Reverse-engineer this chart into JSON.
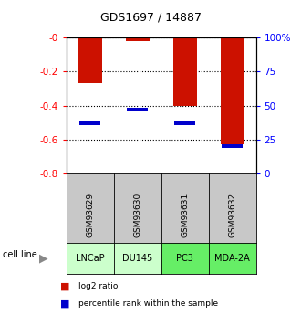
{
  "title": "GDS1697 / 14887",
  "samples": [
    "GSM93629",
    "GSM93630",
    "GSM93631",
    "GSM93632"
  ],
  "cell_lines": [
    "LNCaP",
    "DU145",
    "PC3",
    "MDA-2A"
  ],
  "log2_ratios": [
    -0.27,
    -0.02,
    -0.4,
    -0.63
  ],
  "percentile_ranks": [
    37,
    47,
    37,
    20
  ],
  "cell_line_colors": [
    "#ccffcc",
    "#ccffcc",
    "#66ee66",
    "#66ee66"
  ],
  "bar_color": "#cc1100",
  "blue_color": "#0000cc",
  "ymin": -0.8,
  "ymax": 0.0,
  "yticks_left": [
    0.0,
    -0.2,
    -0.4,
    -0.6,
    -0.8
  ],
  "ytick_labels_left": [
    "-0",
    "-0.2",
    "-0.4",
    "-0.6",
    "-0.8"
  ],
  "yticks_right": [
    0,
    25,
    50,
    75,
    100
  ],
  "ytick_labels_right": [
    "0",
    "25",
    "50",
    "75",
    "100%"
  ],
  "background_color": "#ffffff",
  "sample_box_color": "#c8c8c8",
  "cell_line_label": "cell line"
}
